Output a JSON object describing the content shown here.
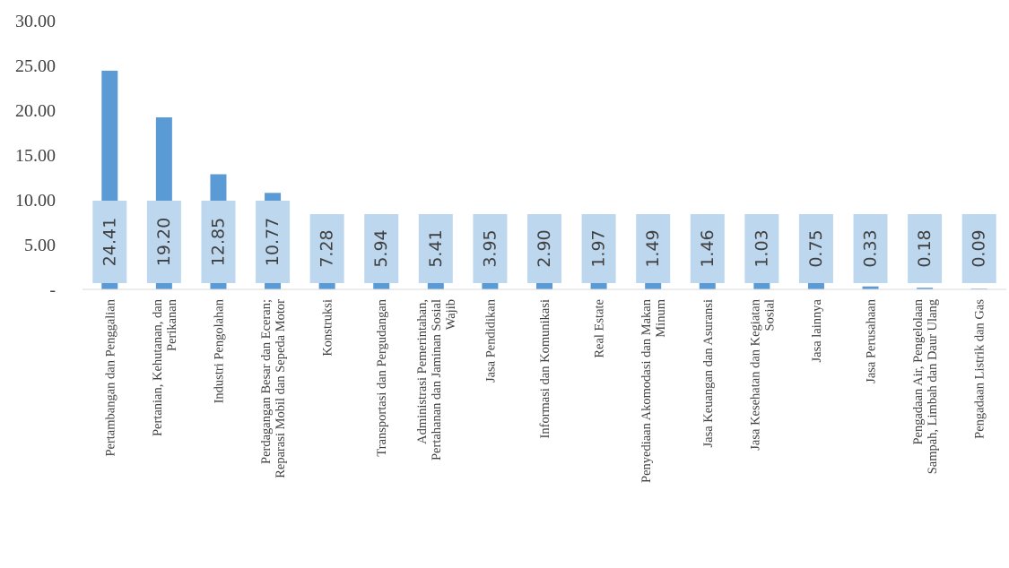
{
  "chart_data": {
    "type": "bar",
    "categories": [
      [
        "Pertambangan dan Penggalian"
      ],
      [
        "Pertanian, Kehutanan, dan",
        "Perikanan"
      ],
      [
        "Industri Pengolahan"
      ],
      [
        "Perdagangan Besar dan Eceran;",
        "Reparasi Mobil dan Sepeda Motor"
      ],
      [
        "Konstruksi"
      ],
      [
        "Transportasi dan Pergudangan"
      ],
      [
        "Administrasi Pemerintahan,",
        "Pertahanan dan Jaminan Sosial",
        "Wajib"
      ],
      [
        "Jasa Pendidikan"
      ],
      [
        "Informasi dan Komunikasi"
      ],
      [
        "Real Estate"
      ],
      [
        "Penyediaan Akomodasi dan Makan",
        "Minum"
      ],
      [
        "Jasa Keuangan dan Asuransi"
      ],
      [
        "Jasa Kesehatan dan Kegiatan",
        "Sosial"
      ],
      [
        "Jasa lainnya"
      ],
      [
        "Jasa Perusahaan"
      ],
      [
        "Pengadaan Air, Pengelolaan",
        "Sampah, Limbah dan Daur Ulang"
      ],
      [
        "Pengadaan Listrik dan Gas"
      ]
    ],
    "values": [
      24.41,
      19.2,
      12.85,
      10.77,
      7.28,
      5.94,
      5.41,
      3.95,
      2.9,
      1.97,
      1.49,
      1.46,
      1.03,
      0.75,
      0.33,
      0.18,
      0.09
    ],
    "data_labels": [
      "24.41",
      "19.20",
      "12.85",
      "10.77",
      "7.28",
      "5.94",
      "5.41",
      "3.95",
      "2.90",
      "1.97",
      "1.49",
      "1.46",
      "1.03",
      "0.75",
      "0.33",
      "0.18",
      "0.09"
    ],
    "yticks": [
      0,
      5,
      10,
      15,
      20,
      25,
      30
    ],
    "ytick_labels": [
      "-",
      "5.00",
      "10.00",
      "15.00",
      "20.00",
      "25.00",
      "30.00"
    ],
    "ylim": [
      0,
      30
    ],
    "title": "",
    "xlabel": "",
    "ylabel": "",
    "grid": false,
    "legend": "none",
    "colors": {
      "bar": "#5B9BD5",
      "label_box": "#BDD7EE",
      "axis": "#D9D9D9",
      "text": "#404040"
    }
  }
}
